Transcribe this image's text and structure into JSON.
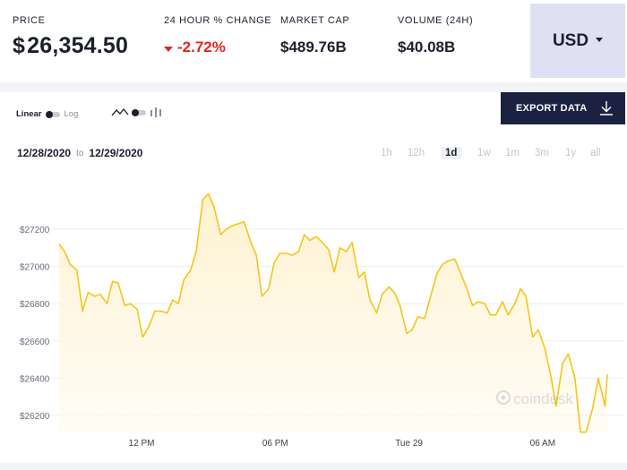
{
  "header": {
    "price": {
      "label": "PRICE",
      "currency_symbol": "$",
      "value": "26,354.50"
    },
    "change": {
      "label": "24 HOUR % CHANGE",
      "value": "-2.72%",
      "direction": "down"
    },
    "market_cap": {
      "label": "MARKET CAP",
      "value": "$489.76B"
    },
    "volume": {
      "label": "VOLUME (24H)",
      "value": "$40.08B"
    },
    "currency_select": {
      "value": "USD"
    }
  },
  "toolbar": {
    "scale": {
      "linear": "Linear",
      "log": "Log",
      "selected": "Linear"
    },
    "chart_type_icons": [
      "line-chart-icon",
      "candlestick-icon"
    ],
    "export_label": "EXPORT DATA"
  },
  "date_range": {
    "from": "12/28/2020",
    "to_label": "to",
    "to": "12/29/2020"
  },
  "timeframes": [
    "1h",
    "12h",
    "1d",
    "1w",
    "1m",
    "3m",
    "1y",
    "all"
  ],
  "active_timeframe": "1d",
  "watermark": "coindesk",
  "colors": {
    "line": "#f5c518",
    "fill": "#fff4d6",
    "negative": "#e0261f",
    "nav": "#1b2140",
    "selector": "#dfe1f2"
  },
  "chart_data": {
    "type": "area",
    "title": "",
    "xlabel": "",
    "ylabel": "",
    "xticks": [
      "12 PM",
      "06 PM",
      "Tue 29",
      "06 AM"
    ],
    "xtick_hours": [
      12,
      18,
      24,
      30
    ],
    "xlim": [
      8.3,
      32.9
    ],
    "yticks": [
      26200,
      26400,
      26600,
      26800,
      27000,
      27200
    ],
    "ytick_labels": [
      "$26200",
      "$26400",
      "$26600",
      "$26800",
      "$27000",
      "$27200"
    ],
    "ylim": [
      26100,
      27400
    ],
    "grid": true,
    "x_hours": [
      8.3,
      8.55,
      8.8,
      9.1,
      9.35,
      9.6,
      9.9,
      10.15,
      10.45,
      10.7,
      10.95,
      11.25,
      11.5,
      11.8,
      12.05,
      12.3,
      12.6,
      12.85,
      13.15,
      13.4,
      13.65,
      13.9,
      14.2,
      14.45,
      14.75,
      15.0,
      15.25,
      15.55,
      15.8,
      16.1,
      16.35,
      16.6,
      16.9,
      17.15,
      17.4,
      17.7,
      17.95,
      18.2,
      18.5,
      18.75,
      19.05,
      19.3,
      19.55,
      19.85,
      20.1,
      20.4,
      20.65,
      20.9,
      21.2,
      21.45,
      21.75,
      22.0,
      22.25,
      22.55,
      22.8,
      23.1,
      23.35,
      23.6,
      23.9,
      24.15,
      24.4,
      24.7,
      24.95,
      25.25,
      25.5,
      25.75,
      26.05,
      26.3,
      26.6,
      26.85,
      27.1,
      27.4,
      27.65,
      27.9,
      28.2,
      28.45,
      28.75,
      29.0,
      29.25,
      29.55,
      29.8,
      30.1,
      30.35,
      30.6,
      30.9,
      31.15,
      31.45,
      31.7,
      31.95,
      32.25,
      32.5,
      32.8,
      32.9
    ],
    "values": [
      27120,
      27080,
      27010,
      26980,
      26760,
      26860,
      26840,
      26850,
      26800,
      26920,
      26910,
      26790,
      26800,
      26770,
      26620,
      26670,
      26760,
      26760,
      26750,
      26820,
      26800,
      26930,
      26980,
      27080,
      27360,
      27390,
      27320,
      27170,
      27200,
      27220,
      27230,
      27240,
      27130,
      27060,
      26840,
      26880,
      27020,
      27070,
      27070,
      27060,
      27080,
      27170,
      27140,
      27160,
      27130,
      27090,
      26970,
      27100,
      27080,
      27130,
      26940,
      26970,
      26820,
      26750,
      26850,
      26890,
      26860,
      26790,
      26640,
      26660,
      26730,
      26720,
      26830,
      26960,
      27010,
      27030,
      27040,
      26970,
      26880,
      26790,
      26810,
      26800,
      26740,
      26740,
      26810,
      26740,
      26800,
      26880,
      26840,
      26620,
      26660,
      26560,
      26420,
      26250,
      26480,
      26530,
      26400,
      26110,
      26110,
      26240,
      26400,
      26250,
      26420
    ]
  }
}
